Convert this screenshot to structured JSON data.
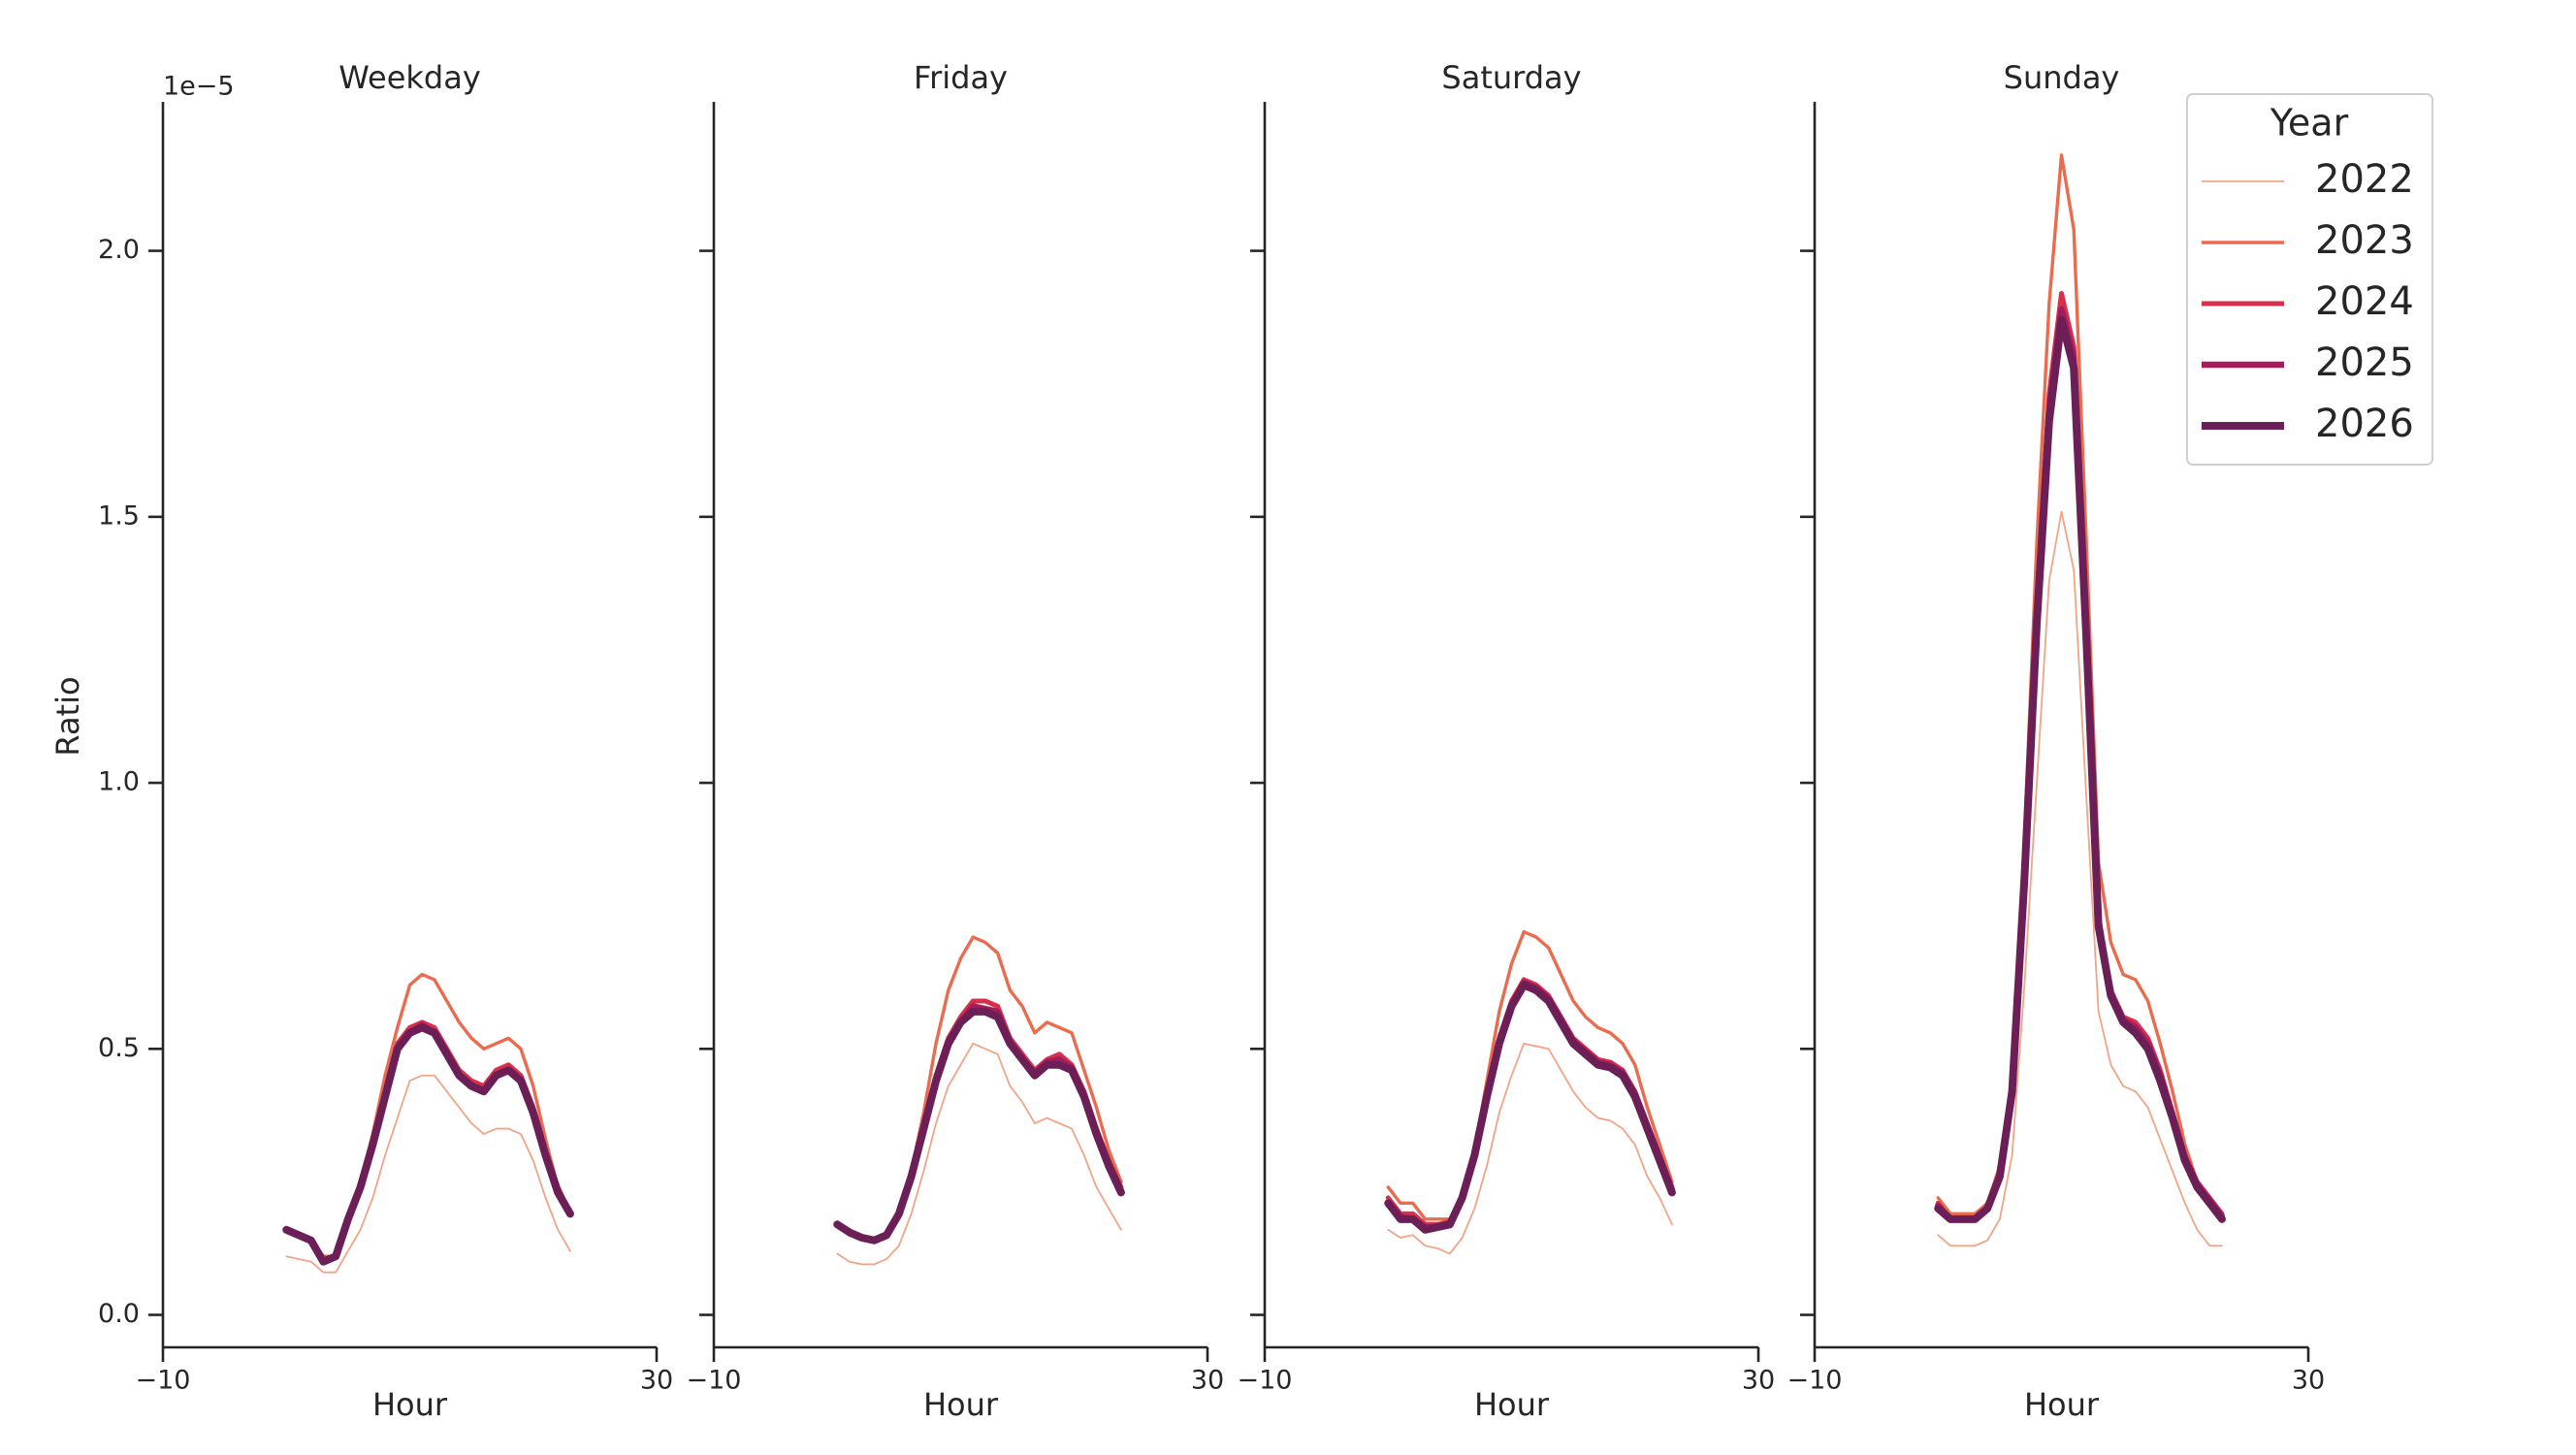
{
  "chart_data": [
    {
      "type": "line",
      "title": "Weekday",
      "xlabel": "Hour",
      "ylabel": "Ratio",
      "y_offset_label": "1e−5",
      "x": [
        0,
        1,
        2,
        3,
        4,
        5,
        6,
        7,
        8,
        9,
        10,
        11,
        12,
        13,
        14,
        15,
        16,
        17,
        18,
        19,
        20,
        21,
        22,
        23
      ],
      "xlim": [
        -10,
        30
      ],
      "xticks": [
        {
          "value": -10,
          "label": "−10"
        },
        30
      ],
      "ylim": [
        -0.03,
        2.28
      ],
      "yticks": [
        {
          "value": 0,
          "label": "0.0"
        },
        0.5,
        {
          "value": 1,
          "label": "1.0"
        },
        1.5,
        {
          "value": 2,
          "label": "2.0"
        }
      ],
      "series": [
        {
          "color": "#f2a487",
          "values": [
            0.11,
            0.105,
            0.1,
            0.08,
            0.08,
            0.12,
            0.16,
            0.22,
            0.3,
            0.37,
            0.44,
            0.45,
            0.45,
            0.42,
            0.39,
            0.36,
            0.34,
            0.35,
            0.35,
            0.34,
            0.29,
            0.22,
            0.16,
            0.12
          ]
        },
        {
          "color": "#eb6b4e",
          "values": [
            0.16,
            0.15,
            0.14,
            0.11,
            0.11,
            0.18,
            0.25,
            0.34,
            0.45,
            0.54,
            0.62,
            0.64,
            0.63,
            0.59,
            0.55,
            0.52,
            0.5,
            0.51,
            0.52,
            0.5,
            0.43,
            0.33,
            0.24,
            0.19
          ]
        },
        {
          "color": "#d8304a",
          "values": [
            0.16,
            0.15,
            0.14,
            0.1,
            0.11,
            0.18,
            0.24,
            0.33,
            0.42,
            0.51,
            0.54,
            0.55,
            0.54,
            0.5,
            0.46,
            0.44,
            0.43,
            0.46,
            0.47,
            0.45,
            0.39,
            0.31,
            0.24,
            0.19
          ]
        },
        {
          "color": "#a41c5c",
          "values": [
            0.16,
            0.15,
            0.14,
            0.1,
            0.11,
            0.18,
            0.24,
            0.32,
            0.41,
            0.5,
            0.53,
            0.545,
            0.53,
            0.49,
            0.45,
            0.43,
            0.42,
            0.45,
            0.46,
            0.44,
            0.38,
            0.3,
            0.23,
            0.19
          ]
        },
        {
          "color": "#6b1f56",
          "values": [
            0.16,
            0.15,
            0.14,
            0.1,
            0.11,
            0.18,
            0.24,
            0.32,
            0.41,
            0.5,
            0.53,
            0.54,
            0.53,
            0.49,
            0.45,
            0.43,
            0.42,
            0.45,
            0.46,
            0.44,
            0.38,
            0.3,
            0.23,
            0.19
          ]
        }
      ]
    },
    {
      "type": "line",
      "title": "Friday",
      "xlabel": "Hour",
      "x": [
        0,
        1,
        2,
        3,
        4,
        5,
        6,
        7,
        8,
        9,
        10,
        11,
        12,
        13,
        14,
        15,
        16,
        17,
        18,
        19,
        20,
        21,
        22,
        23
      ],
      "xlim": [
        -10,
        30
      ],
      "xticks": [
        {
          "value": -10,
          "label": "−10"
        },
        30
      ],
      "series": [
        {
          "color": "#f2a487",
          "values": [
            0.115,
            0.1,
            0.095,
            0.095,
            0.105,
            0.13,
            0.19,
            0.27,
            0.36,
            0.43,
            0.47,
            0.51,
            0.5,
            0.49,
            0.43,
            0.4,
            0.36,
            0.37,
            0.36,
            0.35,
            0.3,
            0.24,
            0.2,
            0.16
          ]
        },
        {
          "color": "#eb6b4e",
          "values": [
            0.17,
            0.155,
            0.145,
            0.14,
            0.15,
            0.19,
            0.27,
            0.38,
            0.51,
            0.61,
            0.67,
            0.71,
            0.7,
            0.68,
            0.61,
            0.58,
            0.53,
            0.55,
            0.54,
            0.53,
            0.46,
            0.39,
            0.31,
            0.25
          ]
        },
        {
          "color": "#d8304a",
          "values": [
            0.17,
            0.155,
            0.145,
            0.14,
            0.15,
            0.19,
            0.26,
            0.36,
            0.45,
            0.52,
            0.56,
            0.59,
            0.59,
            0.58,
            0.52,
            0.49,
            0.46,
            0.48,
            0.49,
            0.47,
            0.42,
            0.35,
            0.29,
            0.24
          ]
        },
        {
          "color": "#a41c5c",
          "values": [
            0.17,
            0.155,
            0.145,
            0.14,
            0.15,
            0.19,
            0.26,
            0.35,
            0.44,
            0.51,
            0.55,
            0.58,
            0.575,
            0.57,
            0.51,
            0.48,
            0.455,
            0.475,
            0.48,
            0.465,
            0.41,
            0.34,
            0.28,
            0.23
          ]
        },
        {
          "color": "#6b1f56",
          "values": [
            0.17,
            0.155,
            0.145,
            0.14,
            0.15,
            0.19,
            0.26,
            0.35,
            0.44,
            0.51,
            0.55,
            0.57,
            0.57,
            0.56,
            0.51,
            0.48,
            0.45,
            0.47,
            0.47,
            0.46,
            0.41,
            0.34,
            0.28,
            0.23
          ]
        }
      ]
    },
    {
      "type": "line",
      "title": "Saturday",
      "xlabel": "Hour",
      "x": [
        0,
        1,
        2,
        3,
        4,
        5,
        6,
        7,
        8,
        9,
        10,
        11,
        12,
        13,
        14,
        15,
        16,
        17,
        18,
        19,
        20,
        21,
        22,
        23
      ],
      "xlim": [
        -10,
        30
      ],
      "xticks": [
        {
          "value": -10,
          "label": "−10"
        },
        30
      ],
      "series": [
        {
          "color": "#f2a487",
          "values": [
            0.16,
            0.145,
            0.15,
            0.13,
            0.125,
            0.115,
            0.145,
            0.2,
            0.28,
            0.38,
            0.45,
            0.51,
            0.505,
            0.5,
            0.46,
            0.42,
            0.39,
            0.37,
            0.365,
            0.35,
            0.32,
            0.26,
            0.22,
            0.17
          ]
        },
        {
          "color": "#eb6b4e",
          "values": [
            0.24,
            0.21,
            0.21,
            0.18,
            0.18,
            0.18,
            0.22,
            0.31,
            0.44,
            0.57,
            0.66,
            0.72,
            0.71,
            0.69,
            0.64,
            0.59,
            0.56,
            0.54,
            0.53,
            0.51,
            0.47,
            0.39,
            0.32,
            0.25
          ]
        },
        {
          "color": "#d8304a",
          "values": [
            0.22,
            0.19,
            0.19,
            0.17,
            0.17,
            0.175,
            0.22,
            0.3,
            0.42,
            0.52,
            0.59,
            0.63,
            0.62,
            0.6,
            0.56,
            0.52,
            0.5,
            0.48,
            0.475,
            0.46,
            0.42,
            0.36,
            0.3,
            0.24
          ]
        },
        {
          "color": "#a41c5c",
          "values": [
            0.21,
            0.185,
            0.18,
            0.165,
            0.165,
            0.17,
            0.22,
            0.3,
            0.41,
            0.51,
            0.58,
            0.625,
            0.615,
            0.595,
            0.555,
            0.515,
            0.495,
            0.475,
            0.47,
            0.455,
            0.415,
            0.355,
            0.295,
            0.235
          ]
        },
        {
          "color": "#6b1f56",
          "values": [
            0.21,
            0.18,
            0.18,
            0.16,
            0.165,
            0.17,
            0.22,
            0.3,
            0.41,
            0.51,
            0.58,
            0.62,
            0.61,
            0.59,
            0.55,
            0.51,
            0.49,
            0.47,
            0.465,
            0.45,
            0.41,
            0.35,
            0.29,
            0.23
          ]
        }
      ]
    },
    {
      "type": "line",
      "title": "Sunday",
      "xlabel": "Hour",
      "legend_title": "Year",
      "legend": "upper right",
      "x": [
        0,
        1,
        2,
        3,
        4,
        5,
        6,
        7,
        8,
        9,
        10,
        11,
        12,
        13,
        14,
        15,
        16,
        17,
        18,
        19,
        20,
        21,
        22,
        23
      ],
      "xlim": [
        -10,
        30
      ],
      "xticks": [
        {
          "value": -10,
          "label": "−10"
        },
        30
      ],
      "series": [
        {
          "name": "2022",
          "color": "#f2a487",
          "values": [
            0.15,
            0.13,
            0.13,
            0.13,
            0.14,
            0.18,
            0.3,
            0.62,
            1.0,
            1.38,
            1.51,
            1.4,
            0.98,
            0.57,
            0.47,
            0.43,
            0.42,
            0.39,
            0.33,
            0.27,
            0.21,
            0.16,
            0.13,
            0.13
          ]
        },
        {
          "name": "2023",
          "color": "#eb6b4e",
          "values": [
            0.22,
            0.19,
            0.19,
            0.19,
            0.21,
            0.28,
            0.45,
            0.9,
            1.45,
            1.9,
            2.18,
            2.04,
            1.46,
            0.85,
            0.7,
            0.64,
            0.63,
            0.59,
            0.51,
            0.42,
            0.32,
            0.25,
            0.22,
            0.19
          ]
        },
        {
          "name": "2024",
          "color": "#d8304a",
          "values": [
            0.21,
            0.18,
            0.18,
            0.18,
            0.2,
            0.27,
            0.43,
            0.85,
            1.34,
            1.73,
            1.92,
            1.82,
            1.31,
            0.75,
            0.61,
            0.56,
            0.55,
            0.52,
            0.46,
            0.38,
            0.3,
            0.25,
            0.22,
            0.19
          ]
        },
        {
          "name": "2025",
          "color": "#a41c5c",
          "values": [
            0.205,
            0.18,
            0.18,
            0.18,
            0.2,
            0.265,
            0.425,
            0.83,
            1.32,
            1.7,
            1.89,
            1.8,
            1.29,
            0.74,
            0.6,
            0.555,
            0.54,
            0.51,
            0.45,
            0.375,
            0.295,
            0.245,
            0.215,
            0.185
          ]
        },
        {
          "name": "2026",
          "color": "#6b1f56",
          "values": [
            0.2,
            0.18,
            0.18,
            0.18,
            0.2,
            0.26,
            0.42,
            0.82,
            1.3,
            1.68,
            1.87,
            1.78,
            1.28,
            0.73,
            0.6,
            0.55,
            0.53,
            0.5,
            0.44,
            0.37,
            0.29,
            0.24,
            0.21,
            0.18
          ]
        }
      ]
    }
  ]
}
